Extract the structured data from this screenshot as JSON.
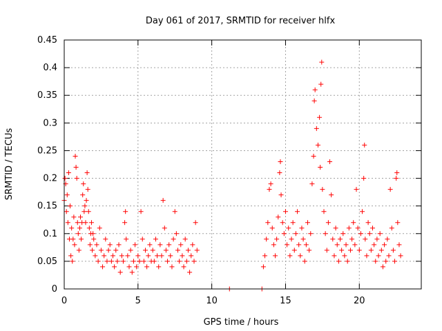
{
  "chart_data": {
    "type": "scatter",
    "title": "Day 061 of 2017, SRMTID for receiver hlfx",
    "xlabel": "GPS time / hours",
    "ylabel": "SRMTID / TECUs",
    "xlim": [
      0,
      24.2
    ],
    "ylim": [
      0,
      0.45
    ],
    "xticks": [
      0,
      5,
      10,
      15,
      20
    ],
    "xtick_labels": [
      "0",
      "5",
      "10",
      "15",
      "20"
    ],
    "yticks": [
      0,
      0.05,
      0.1,
      0.15,
      0.2,
      0.25,
      0.3,
      0.35,
      0.4,
      0.45
    ],
    "ytick_labels": [
      "0",
      "0.05",
      "0.1",
      "0.15",
      "0.2",
      "0.25",
      "0.3",
      "0.35",
      "0.4",
      "0.45"
    ],
    "grid": true,
    "marker": "+",
    "color": "#ff0000",
    "series": [
      {
        "name": "SRMTID",
        "points": [
          [
            0.0,
            0.16
          ],
          [
            0.05,
            0.2
          ],
          [
            0.1,
            0.19
          ],
          [
            0.15,
            0.14
          ],
          [
            0.2,
            0.17
          ],
          [
            0.25,
            0.12
          ],
          [
            0.3,
            0.21
          ],
          [
            0.35,
            0.09
          ],
          [
            0.4,
            0.15
          ],
          [
            0.45,
            0.06
          ],
          [
            0.5,
            0.11
          ],
          [
            0.55,
            0.05
          ],
          [
            0.6,
            0.09
          ],
          [
            0.65,
            0.13
          ],
          [
            0.7,
            0.08
          ],
          [
            0.75,
            0.24
          ],
          [
            0.8,
            0.22
          ],
          [
            0.85,
            0.2
          ],
          [
            0.9,
            0.12
          ],
          [
            0.95,
            0.1
          ],
          [
            1.0,
            0.07
          ],
          [
            1.05,
            0.11
          ],
          [
            1.1,
            0.13
          ],
          [
            1.15,
            0.09
          ],
          [
            1.2,
            0.12
          ],
          [
            1.25,
            0.17
          ],
          [
            1.3,
            0.19
          ],
          [
            1.35,
            0.14
          ],
          [
            1.4,
            0.15
          ],
          [
            1.45,
            0.12
          ],
          [
            1.5,
            0.16
          ],
          [
            1.55,
            0.21
          ],
          [
            1.6,
            0.18
          ],
          [
            1.65,
            0.14
          ],
          [
            1.7,
            0.11
          ],
          [
            1.75,
            0.08
          ],
          [
            1.8,
            0.1
          ],
          [
            1.85,
            0.12
          ],
          [
            1.9,
            0.07
          ],
          [
            1.95,
            0.1
          ],
          [
            2.0,
            0.09
          ],
          [
            2.1,
            0.06
          ],
          [
            2.2,
            0.08
          ],
          [
            2.3,
            0.05
          ],
          [
            2.4,
            0.11
          ],
          [
            2.5,
            0.07
          ],
          [
            2.6,
            0.04
          ],
          [
            2.7,
            0.06
          ],
          [
            2.8,
            0.09
          ],
          [
            2.9,
            0.05
          ],
          [
            3.0,
            0.07
          ],
          [
            3.1,
            0.08
          ],
          [
            3.2,
            0.05
          ],
          [
            3.3,
            0.06
          ],
          [
            3.4,
            0.04
          ],
          [
            3.5,
            0.07
          ],
          [
            3.6,
            0.05
          ],
          [
            3.7,
            0.08
          ],
          [
            3.8,
            0.03
          ],
          [
            3.9,
            0.06
          ],
          [
            4.0,
            0.05
          ],
          [
            4.1,
            0.12
          ],
          [
            4.15,
            0.14
          ],
          [
            4.2,
            0.09
          ],
          [
            4.3,
            0.06
          ],
          [
            4.4,
            0.04
          ],
          [
            4.5,
            0.07
          ],
          [
            4.6,
            0.03
          ],
          [
            4.7,
            0.05
          ],
          [
            4.8,
            0.08
          ],
          [
            4.9,
            0.04
          ],
          [
            5.0,
            0.06
          ],
          [
            5.1,
            0.05
          ],
          [
            5.2,
            0.14
          ],
          [
            5.3,
            0.09
          ],
          [
            5.4,
            0.05
          ],
          [
            5.5,
            0.07
          ],
          [
            5.6,
            0.04
          ],
          [
            5.7,
            0.06
          ],
          [
            5.8,
            0.08
          ],
          [
            5.9,
            0.05
          ],
          [
            6.0,
            0.07
          ],
          [
            6.1,
            0.05
          ],
          [
            6.2,
            0.09
          ],
          [
            6.3,
            0.06
          ],
          [
            6.4,
            0.04
          ],
          [
            6.5,
            0.08
          ],
          [
            6.6,
            0.06
          ],
          [
            6.7,
            0.16
          ],
          [
            6.8,
            0.11
          ],
          [
            6.9,
            0.07
          ],
          [
            7.0,
            0.05
          ],
          [
            7.1,
            0.08
          ],
          [
            7.2,
            0.06
          ],
          [
            7.3,
            0.04
          ],
          [
            7.4,
            0.09
          ],
          [
            7.5,
            0.14
          ],
          [
            7.6,
            0.1
          ],
          [
            7.7,
            0.07
          ],
          [
            7.8,
            0.05
          ],
          [
            7.9,
            0.08
          ],
          [
            8.0,
            0.06
          ],
          [
            8.1,
            0.04
          ],
          [
            8.2,
            0.09
          ],
          [
            8.3,
            0.05
          ],
          [
            8.4,
            0.07
          ],
          [
            8.5,
            0.03
          ],
          [
            8.6,
            0.06
          ],
          [
            8.7,
            0.08
          ],
          [
            8.8,
            0.05
          ],
          [
            8.9,
            0.12
          ],
          [
            9.0,
            0.07
          ],
          [
            11.2,
            0.0
          ],
          [
            13.4,
            0.0
          ],
          [
            13.5,
            0.04
          ],
          [
            13.6,
            0.06
          ],
          [
            13.7,
            0.09
          ],
          [
            13.8,
            0.12
          ],
          [
            13.9,
            0.18
          ],
          [
            14.0,
            0.19
          ],
          [
            14.1,
            0.11
          ],
          [
            14.2,
            0.08
          ],
          [
            14.3,
            0.06
          ],
          [
            14.4,
            0.09
          ],
          [
            14.5,
            0.13
          ],
          [
            14.6,
            0.21
          ],
          [
            14.65,
            0.23
          ],
          [
            14.7,
            0.17
          ],
          [
            14.8,
            0.12
          ],
          [
            14.9,
            0.1
          ],
          [
            15.0,
            0.14
          ],
          [
            15.1,
            0.08
          ],
          [
            15.2,
            0.11
          ],
          [
            15.3,
            0.06
          ],
          [
            15.4,
            0.09
          ],
          [
            15.5,
            0.12
          ],
          [
            15.6,
            0.07
          ],
          [
            15.7,
            0.1
          ],
          [
            15.8,
            0.14
          ],
          [
            15.9,
            0.08
          ],
          [
            16.0,
            0.06
          ],
          [
            16.1,
            0.11
          ],
          [
            16.2,
            0.09
          ],
          [
            16.3,
            0.05
          ],
          [
            16.4,
            0.08
          ],
          [
            16.5,
            0.12
          ],
          [
            16.6,
            0.07
          ],
          [
            16.7,
            0.1
          ],
          [
            16.8,
            0.19
          ],
          [
            16.9,
            0.24
          ],
          [
            16.95,
            0.34
          ],
          [
            17.0,
            0.36
          ],
          [
            17.1,
            0.29
          ],
          [
            17.2,
            0.26
          ],
          [
            17.3,
            0.31
          ],
          [
            17.35,
            0.22
          ],
          [
            17.4,
            0.37
          ],
          [
            17.45,
            0.41
          ],
          [
            17.5,
            0.18
          ],
          [
            17.6,
            0.14
          ],
          [
            17.7,
            0.1
          ],
          [
            17.8,
            0.07
          ],
          [
            17.9,
            0.12
          ],
          [
            18.0,
            0.23
          ],
          [
            18.1,
            0.17
          ],
          [
            18.2,
            0.09
          ],
          [
            18.3,
            0.06
          ],
          [
            18.4,
            0.11
          ],
          [
            18.5,
            0.08
          ],
          [
            18.6,
            0.05
          ],
          [
            18.7,
            0.09
          ],
          [
            18.8,
            0.07
          ],
          [
            18.9,
            0.1
          ],
          [
            19.0,
            0.06
          ],
          [
            19.1,
            0.08
          ],
          [
            19.2,
            0.05
          ],
          [
            19.3,
            0.11
          ],
          [
            19.4,
            0.07
          ],
          [
            19.5,
            0.09
          ],
          [
            19.6,
            0.12
          ],
          [
            19.7,
            0.08
          ],
          [
            19.8,
            0.18
          ],
          [
            19.9,
            0.11
          ],
          [
            20.0,
            0.07
          ],
          [
            20.1,
            0.1
          ],
          [
            20.2,
            0.14
          ],
          [
            20.3,
            0.2
          ],
          [
            20.35,
            0.26
          ],
          [
            20.4,
            0.09
          ],
          [
            20.5,
            0.06
          ],
          [
            20.6,
            0.12
          ],
          [
            20.7,
            0.1
          ],
          [
            20.8,
            0.07
          ],
          [
            20.9,
            0.11
          ],
          [
            21.0,
            0.08
          ],
          [
            21.1,
            0.05
          ],
          [
            21.2,
            0.09
          ],
          [
            21.3,
            0.06
          ],
          [
            21.4,
            0.1
          ],
          [
            21.5,
            0.07
          ],
          [
            21.6,
            0.04
          ],
          [
            21.7,
            0.08
          ],
          [
            21.8,
            0.05
          ],
          [
            21.9,
            0.09
          ],
          [
            22.0,
            0.06
          ],
          [
            22.1,
            0.18
          ],
          [
            22.2,
            0.11
          ],
          [
            22.3,
            0.07
          ],
          [
            22.4,
            0.05
          ],
          [
            22.5,
            0.2
          ],
          [
            22.55,
            0.21
          ],
          [
            22.6,
            0.12
          ],
          [
            22.7,
            0.08
          ],
          [
            22.8,
            0.06
          ]
        ]
      }
    ]
  }
}
